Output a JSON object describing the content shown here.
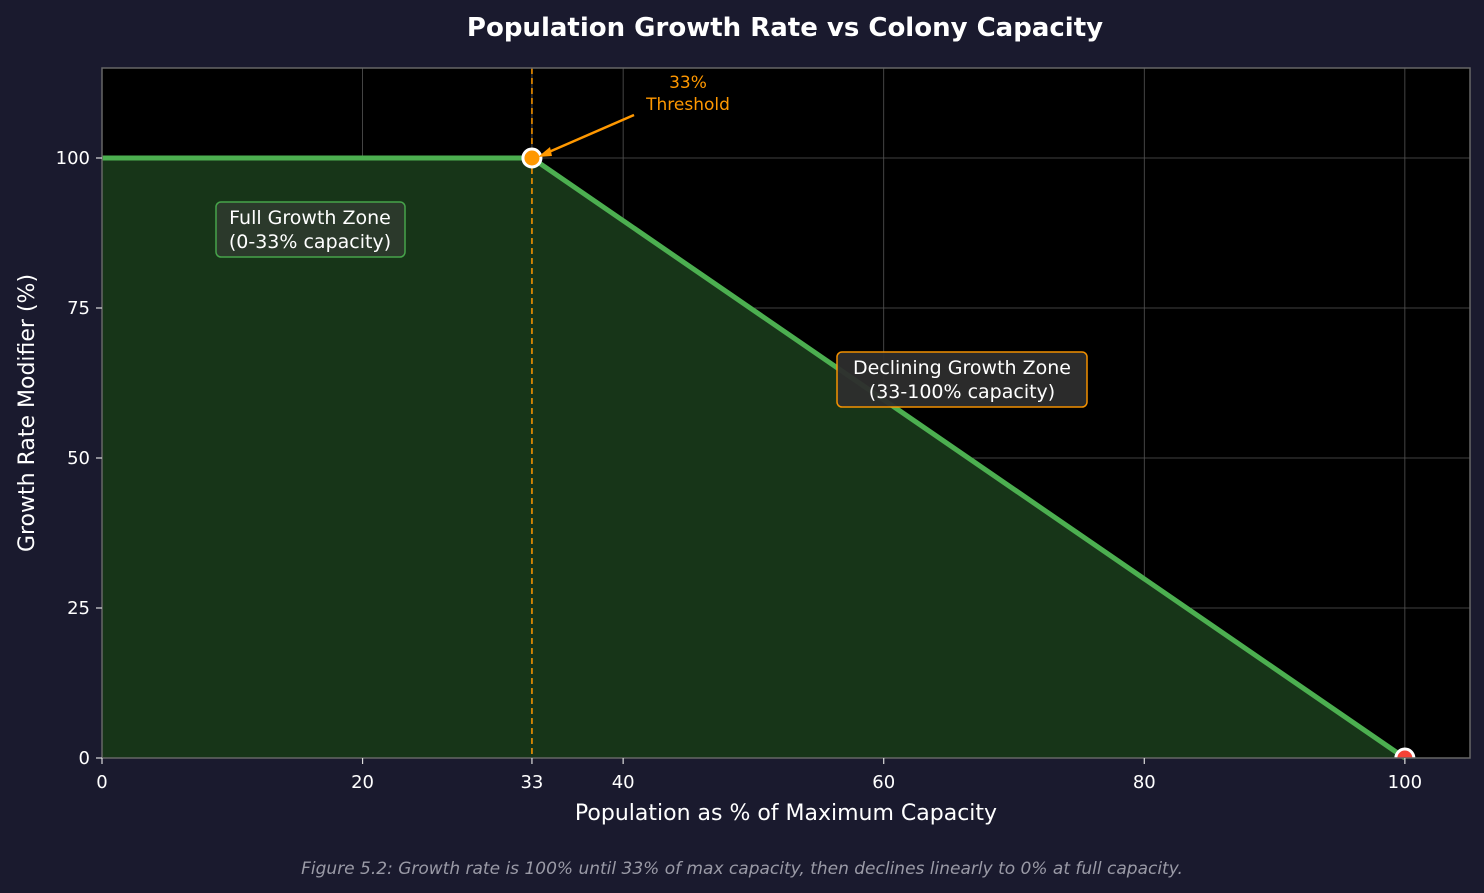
{
  "chart_data": {
    "type": "line",
    "title": "Population Growth Rate vs Colony Capacity",
    "xlabel": "Population as % of Maximum Capacity",
    "ylabel": "Growth Rate Modifier (%)",
    "xlim": [
      0,
      105
    ],
    "ylim": [
      0,
      115
    ],
    "grid": true,
    "x_ticks": [
      0,
      20,
      33,
      40,
      60,
      80,
      100
    ],
    "y_ticks": [
      0,
      25,
      50,
      75,
      100
    ],
    "x_tick_labels": [
      "0",
      "20",
      "33",
      "40",
      "60",
      "80",
      "100"
    ],
    "y_tick_labels": [
      "0",
      "25",
      "50",
      "75",
      "100"
    ],
    "series": [
      {
        "name": "Growth Rate Modifier",
        "x": [
          0,
          33,
          100
        ],
        "y": [
          100,
          100,
          0
        ],
        "color": "#4caf50",
        "fill": "#173518"
      }
    ],
    "markers": [
      {
        "x": 33,
        "y": 100,
        "color": "#ff9800"
      },
      {
        "x": 100,
        "y": 0,
        "color": "#f44336"
      }
    ],
    "threshold_line": {
      "x": 33,
      "color": "#ff9800",
      "style": "dashed"
    },
    "annotations": {
      "threshold": [
        "33%",
        "Threshold"
      ],
      "full_zone": [
        "Full Growth Zone",
        "(0-33% capacity)"
      ],
      "declining_zone": [
        "Declining Growth Zone",
        "(33-100% capacity)"
      ]
    },
    "caption": "Figure 5.2: Growth rate is 100% until 33% of max capacity, then declines linearly to 0% at full capacity."
  }
}
